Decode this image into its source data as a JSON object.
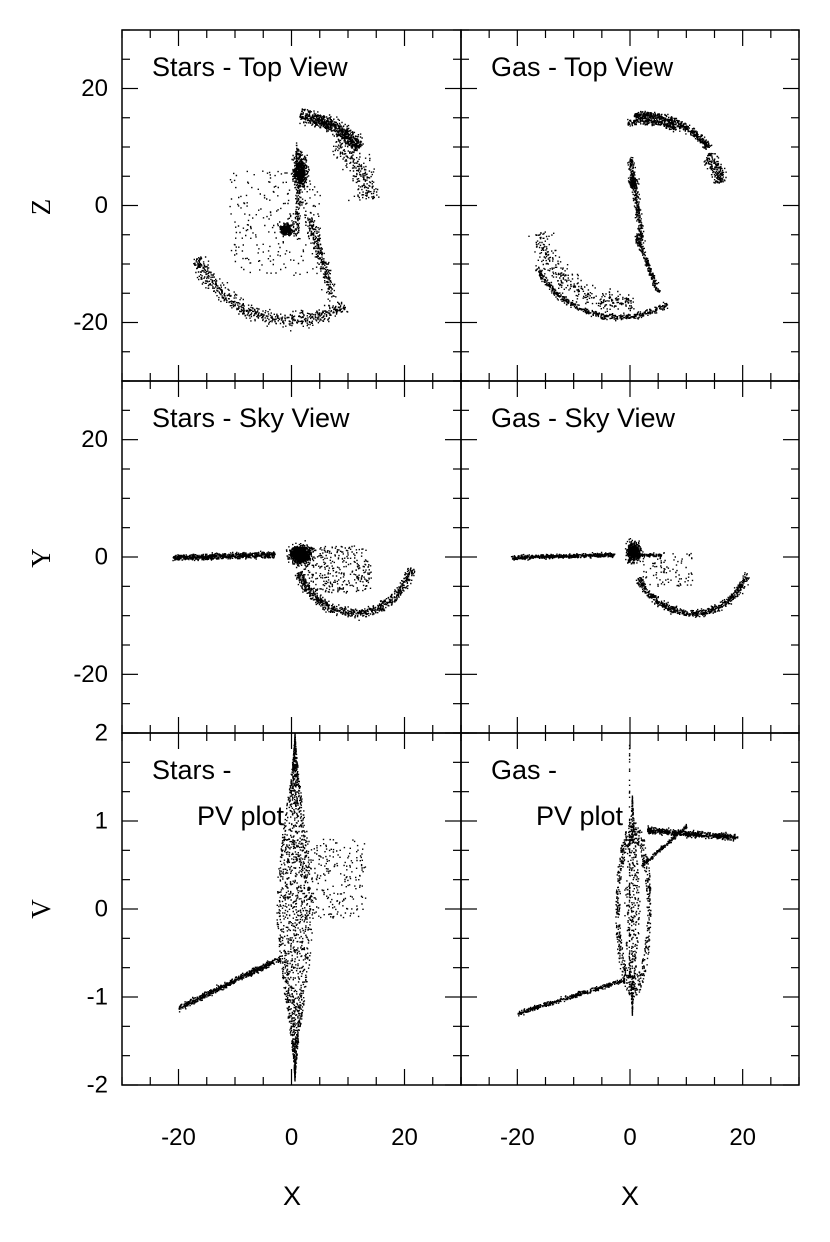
{
  "figure": {
    "x_axis_label": "X",
    "y_axis_labels": [
      "Z",
      "Y",
      "V"
    ]
  },
  "chart_data": [
    {
      "type": "scatter",
      "title": "Stars - Top View",
      "xlabel": "",
      "ylabel": "Z",
      "xlim": [
        -30,
        30
      ],
      "ylim": [
        -30,
        30
      ],
      "x_ticks": [
        -20,
        0,
        20
      ],
      "y_ticks": [
        -20,
        0,
        20
      ],
      "y_tick_labels": [
        "-20",
        "0",
        "20"
      ],
      "x_tick_labels": [],
      "features": [
        {
          "shape": "arc",
          "cx": 0,
          "cy": 0,
          "r": 15.5,
          "a0": 40,
          "a1": 85,
          "width": 2.4,
          "n": 700
        },
        {
          "shape": "arc",
          "cx": 0,
          "cy": 0,
          "r": 13.5,
          "a0": 5,
          "a1": 55,
          "width": 4.5,
          "n": 260
        },
        {
          "shape": "arc",
          "cx": 0,
          "cy": -1,
          "r": 18.5,
          "a0": 205,
          "a1": 300,
          "width": 2.5,
          "n": 650
        },
        {
          "shape": "line",
          "x0": 3,
          "y0": -2,
          "x1": 7,
          "y1": -15,
          "width": 3,
          "n": 280
        },
        {
          "shape": "blob",
          "cx": 1.5,
          "cy": 6,
          "sx": 2,
          "sy": 4,
          "n": 500
        },
        {
          "shape": "blob",
          "cx": -1,
          "cy": -4,
          "sx": 1.8,
          "sy": 1.6,
          "n": 320
        },
        {
          "shape": "line",
          "x0": 1,
          "y0": 10,
          "x1": 1,
          "y1": -5,
          "width": 2,
          "n": 200
        },
        {
          "shape": "halo",
          "cx": -3,
          "cy": -3,
          "sx": 8,
          "sy": 9,
          "n": 230
        }
      ]
    },
    {
      "type": "scatter",
      "title": "Gas - Top View",
      "xlabel": "",
      "ylabel": "",
      "xlim": [
        -30,
        30
      ],
      "ylim": [
        -30,
        30
      ],
      "x_ticks": [
        -20,
        0,
        20
      ],
      "y_ticks": [
        -20,
        0,
        20
      ],
      "y_tick_labels": [],
      "x_tick_labels": [],
      "features": [
        {
          "shape": "arc",
          "cx": 2,
          "cy": 0,
          "r": 15.5,
          "a0": 40,
          "a1": 95,
          "width": 1.3,
          "n": 520
        },
        {
          "shape": "arc",
          "cx": 2,
          "cy": 0,
          "r": 14.5,
          "a0": 65,
          "a1": 100,
          "width": 1,
          "n": 220
        },
        {
          "shape": "arc",
          "cx": 1,
          "cy": 0,
          "r": 15.5,
          "a0": 15,
          "a1": 35,
          "width": 2.5,
          "n": 200
        },
        {
          "shape": "arc",
          "cx": -2,
          "cy": -2,
          "r": 17,
          "a0": 210,
          "a1": 300,
          "width": 1,
          "n": 500
        },
        {
          "shape": "arc",
          "cx": -2,
          "cy": -2,
          "r": 14.5,
          "a0": 190,
          "a1": 280,
          "width": 3.5,
          "n": 340
        },
        {
          "shape": "line",
          "x0": 0,
          "y0": 8,
          "x1": 2,
          "y1": -6,
          "width": 1.6,
          "n": 300
        },
        {
          "shape": "line",
          "x0": 1,
          "y0": -5,
          "x1": 5,
          "y1": -15,
          "width": 1.2,
          "n": 220
        },
        {
          "shape": "blob",
          "cx": 0.5,
          "cy": 4,
          "sx": 1.2,
          "sy": 1.5,
          "n": 120
        }
      ]
    },
    {
      "type": "scatter",
      "title": "Stars - Sky View",
      "xlabel": "",
      "ylabel": "Y",
      "xlim": [
        -30,
        30
      ],
      "ylim": [
        -30,
        30
      ],
      "x_ticks": [
        -20,
        0,
        20
      ],
      "y_ticks": [
        -20,
        0,
        20
      ],
      "y_tick_labels": [
        "-20",
        "0",
        "20"
      ],
      "x_tick_labels": [],
      "features": [
        {
          "shape": "line",
          "x0": -21,
          "y0": 0,
          "x1": -3,
          "y1": 0.5,
          "width": 0.9,
          "n": 700
        },
        {
          "shape": "blob",
          "cx": 1.5,
          "cy": 0.5,
          "sx": 3,
          "sy": 2.5,
          "n": 850
        },
        {
          "shape": "arc",
          "cx": 11,
          "cy": 1,
          "r": 10.5,
          "a0": 200,
          "a1": 345,
          "width": 1.6,
          "n": 700
        },
        {
          "shape": "halo",
          "cx": 8,
          "cy": -2,
          "sx": 6,
          "sy": 4,
          "n": 340
        }
      ]
    },
    {
      "type": "scatter",
      "title": "Gas - Sky View",
      "xlabel": "",
      "ylabel": "",
      "xlim": [
        -30,
        30
      ],
      "ylim": [
        -30,
        30
      ],
      "x_ticks": [
        -20,
        0,
        20
      ],
      "y_ticks": [
        -20,
        0,
        20
      ],
      "y_tick_labels": [],
      "x_tick_labels": [],
      "features": [
        {
          "shape": "line",
          "x0": -21,
          "y0": 0,
          "x1": -3,
          "y1": 0.5,
          "width": 0.7,
          "n": 600
        },
        {
          "shape": "blob",
          "cx": 0.5,
          "cy": 1,
          "sx": 1.8,
          "sy": 2.6,
          "n": 520
        },
        {
          "shape": "line",
          "x0": 0,
          "y0": 0.4,
          "x1": 5.5,
          "y1": 0.4,
          "width": 0.5,
          "n": 130
        },
        {
          "shape": "arc",
          "cx": 11,
          "cy": 1,
          "r": 10.5,
          "a0": 205,
          "a1": 340,
          "width": 1.2,
          "n": 620
        },
        {
          "shape": "halo",
          "cx": 6,
          "cy": -2,
          "sx": 5,
          "sy": 3,
          "n": 110
        }
      ]
    },
    {
      "type": "scatter",
      "title": "Stars -\nPV plot",
      "xlabel": "X",
      "ylabel": "V",
      "xlim": [
        -30,
        30
      ],
      "ylim": [
        -2,
        2
      ],
      "x_ticks": [
        -20,
        0,
        20
      ],
      "y_ticks": [
        -2,
        -1,
        0,
        1,
        2
      ],
      "y_tick_labels": [
        "-2",
        "-1",
        "0",
        "1",
        "2"
      ],
      "x_tick_labels": [
        "-20",
        "0",
        "20"
      ],
      "features": [
        {
          "shape": "lens",
          "cx": 0.5,
          "y0": -1.95,
          "y1": 2.0,
          "halfwidth": 3.2,
          "n": 1600
        },
        {
          "shape": "line",
          "x0": -20,
          "y0": -1.12,
          "x1": -2,
          "y1": -0.55,
          "width": 0.07,
          "n": 620
        },
        {
          "shape": "arc",
          "cx": 8,
          "cy": 0.55,
          "r": 10,
          "a0": 10,
          "a1": 120,
          "width": 0.1,
          "n": 420
        },
        {
          "shape": "halo",
          "cx": 6,
          "cy": 0.35,
          "sx": 7,
          "sy": 0.45,
          "n": 300
        }
      ]
    },
    {
      "type": "scatter",
      "title": "Gas -\nPV plot",
      "xlabel": "X",
      "ylabel": "",
      "xlim": [
        -30,
        30
      ],
      "ylim": [
        -2,
        2
      ],
      "x_ticks": [
        -20,
        0,
        20
      ],
      "y_ticks": [
        -2,
        -1,
        0,
        1,
        2
      ],
      "y_tick_labels": [],
      "x_tick_labels": [
        "-20",
        "0",
        "20"
      ],
      "features": [
        {
          "shape": "ring",
          "cx": 0.5,
          "cy": 0,
          "rx": 3,
          "ry": 0.95,
          "n": 620
        },
        {
          "shape": "lens",
          "cx": 0.3,
          "y0": -1.2,
          "y1": 1.3,
          "halfwidth": 1.4,
          "n": 420
        },
        {
          "shape": "line",
          "x0": -20,
          "y0": -1.18,
          "x1": -1,
          "y1": -0.8,
          "width": 0.05,
          "n": 440
        },
        {
          "shape": "line",
          "x0": 3,
          "y0": 0.9,
          "x1": 19,
          "y1": 0.82,
          "width": 0.07,
          "n": 560
        },
        {
          "shape": "line",
          "x0": 2,
          "y0": 0.5,
          "x1": 10,
          "y1": 0.95,
          "width": 0.05,
          "n": 200
        },
        {
          "shape": "line",
          "x0": -0.2,
          "y0": -0.9,
          "x1": -0.2,
          "y1": 1.9,
          "width": 0.03,
          "n": 80
        }
      ]
    }
  ]
}
